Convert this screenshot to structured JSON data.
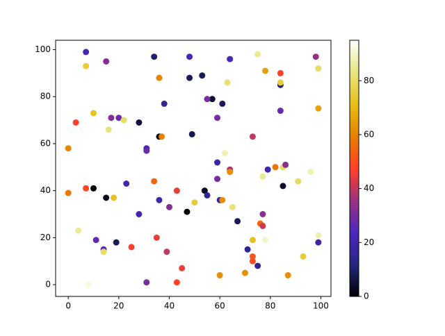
{
  "chart_data": {
    "type": "scatter",
    "colormap": "CMRmap",
    "x": [
      7,
      34,
      48,
      64,
      75,
      98,
      7,
      15,
      36,
      48,
      53,
      78,
      84,
      84,
      84,
      99,
      63,
      38,
      57,
      55,
      61,
      99,
      10,
      3,
      17,
      20,
      22,
      28,
      16,
      59,
      84,
      36,
      37,
      49,
      73,
      0,
      31,
      31,
      62,
      59,
      64,
      64,
      59,
      79,
      82,
      85,
      86,
      96,
      77,
      0,
      7,
      10,
      23,
      15,
      18,
      34,
      43,
      54,
      55,
      60,
      61,
      85,
      91,
      36,
      50,
      40,
      65,
      28,
      47,
      67,
      77,
      76,
      77,
      4,
      11,
      19,
      14,
      14,
      25,
      35,
      39,
      73,
      78,
      71,
      73,
      73,
      75,
      99,
      99,
      93,
      45,
      8,
      31,
      43,
      60,
      70,
      87
    ],
    "y": [
      99,
      97,
      97,
      96,
      98,
      97,
      93,
      95,
      88,
      88,
      89,
      91,
      90,
      85,
      86,
      92,
      86,
      77,
      79,
      79,
      77,
      75,
      73,
      69,
      71,
      71,
      70,
      69,
      66,
      71,
      74,
      63,
      63,
      64,
      63,
      58,
      58,
      57,
      56,
      52,
      49,
      48,
      45,
      49,
      50,
      50,
      51,
      48,
      46,
      39,
      41,
      41,
      43,
      37,
      37,
      44,
      40,
      40,
      38,
      36,
      36,
      42,
      44,
      36,
      35,
      33,
      33,
      30,
      31,
      27,
      30,
      26,
      25,
      23,
      19,
      18,
      15,
      14,
      16,
      20,
      14,
      19,
      19,
      15,
      12,
      10,
      8,
      21,
      18,
      12,
      7,
      0,
      1,
      1,
      4,
      5,
      4
    ],
    "c": [
      22,
      10,
      22,
      22,
      85,
      35,
      75,
      32,
      60,
      8,
      8,
      65,
      48,
      12,
      75,
      80,
      82,
      15,
      4,
      30,
      8,
      65,
      72,
      47,
      32,
      28,
      80,
      5,
      83,
      30,
      28,
      2,
      60,
      7,
      40,
      60,
      22,
      28,
      88,
      18,
      38,
      62,
      30,
      20,
      58,
      80,
      33,
      88,
      85,
      58,
      48,
      0,
      20,
      3,
      72,
      55,
      45,
      3,
      15,
      15,
      62,
      4,
      80,
      20,
      75,
      32,
      82,
      22,
      0,
      8,
      33,
      55,
      42,
      85,
      27,
      8,
      25,
      80,
      47,
      45,
      40,
      72,
      90,
      15,
      52,
      50,
      15,
      88,
      18,
      75,
      45,
      92,
      30,
      48,
      62,
      62,
      62
    ],
    "clim": [
      0,
      95
    ],
    "cticks": [
      0,
      20,
      40,
      60,
      80
    ],
    "xlim": [
      -5,
      104
    ],
    "ylim": [
      -5,
      104
    ],
    "xticks": [
      0,
      20,
      40,
      60,
      80,
      100
    ],
    "yticks": [
      0,
      20,
      40,
      60,
      80,
      100
    ]
  }
}
